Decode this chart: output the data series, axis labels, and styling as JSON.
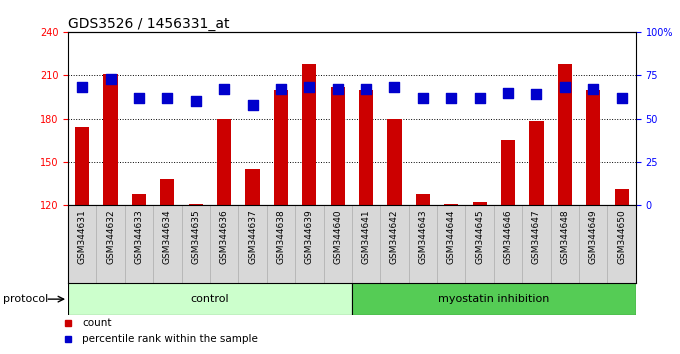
{
  "title": "GDS3526 / 1456331_at",
  "samples": [
    "GSM344631",
    "GSM344632",
    "GSM344633",
    "GSM344634",
    "GSM344635",
    "GSM344636",
    "GSM344637",
    "GSM344638",
    "GSM344639",
    "GSM344640",
    "GSM344641",
    "GSM344642",
    "GSM344643",
    "GSM344644",
    "GSM344645",
    "GSM344646",
    "GSM344647",
    "GSM344648",
    "GSM344649",
    "GSM344650"
  ],
  "counts": [
    174,
    211,
    128,
    138,
    121,
    180,
    145,
    200,
    218,
    202,
    200,
    180,
    128,
    121,
    122,
    165,
    178,
    218,
    200,
    131
  ],
  "percentiles": [
    68,
    73,
    62,
    62,
    60,
    67,
    58,
    67,
    68,
    67,
    67,
    68,
    62,
    62,
    62,
    65,
    64,
    68,
    67,
    62
  ],
  "control_count": 10,
  "myostatin_count": 10,
  "ylim_left": [
    120,
    240
  ],
  "ylim_right": [
    0,
    100
  ],
  "yticks_left": [
    120,
    150,
    180,
    210,
    240
  ],
  "yticks_right": [
    0,
    25,
    50,
    75,
    100
  ],
  "bar_color": "#cc0000",
  "dot_color": "#0000cc",
  "control_color": "#ccffcc",
  "myostatin_color": "#55cc55",
  "bg_color": "#d8d8d8",
  "plot_bg": "#ffffff",
  "bar_width": 0.5,
  "dot_size": 45,
  "title_fontsize": 10,
  "tick_fontsize": 7,
  "label_fontsize": 8,
  "proto_fontsize": 8
}
